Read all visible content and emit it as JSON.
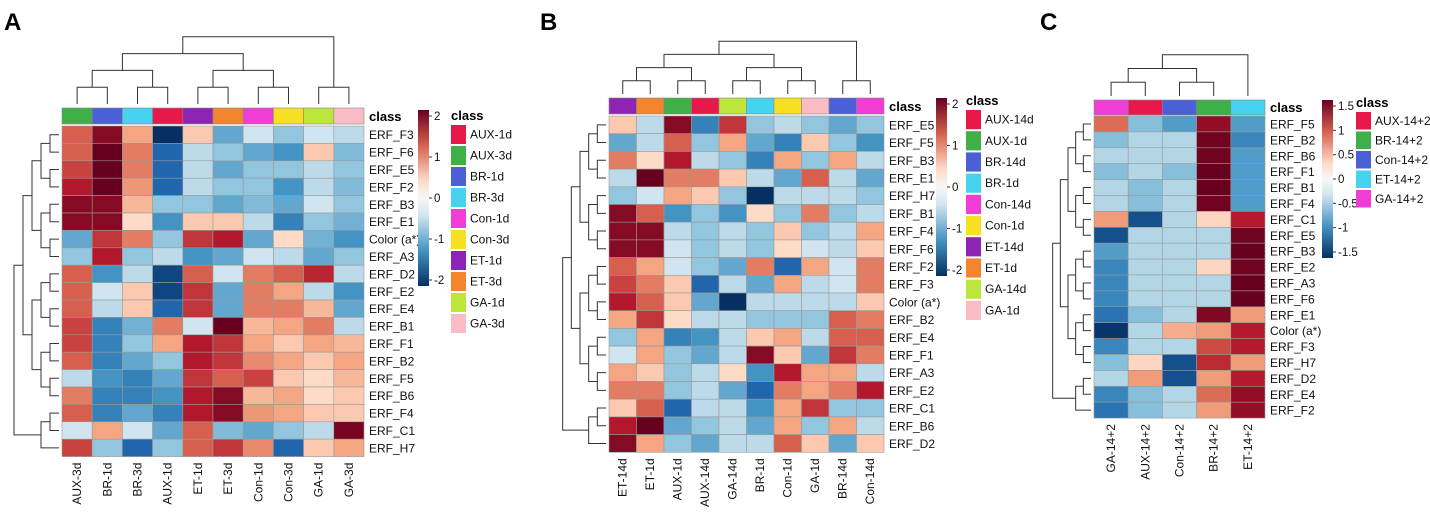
{
  "chart_data": [
    {
      "type": "heatmap",
      "panel_label": "A",
      "class_header": "class",
      "columns": [
        "AUX-3d",
        "BR-1d",
        "BR-3d",
        "AUX-1d",
        "ET-1d",
        "ET-3d",
        "Con-1d",
        "Con-3d",
        "GA-1d",
        "GA-3d"
      ],
      "column_classes": [
        "AUX-3d",
        "BR-1d",
        "BR-3d",
        "AUX-1d",
        "ET-1d",
        "ET-3d",
        "Con-1d",
        "Con-3d",
        "GA-1d",
        "GA-3d"
      ],
      "rows": [
        "ERF_F3",
        "ERF_F6",
        "ERF_E5",
        "ERF_F2",
        "ERF_B3",
        "ERF_E1",
        "Color (a*)",
        "ERF_A3",
        "ERF_D2",
        "ERF_E2",
        "ERF_E4",
        "ERF_B1",
        "ERF_F1",
        "ERF_B2",
        "ERF_F5",
        "ERF_B6",
        "ERF_F4",
        "ERF_C1",
        "ERF_H7"
      ],
      "values": [
        [
          1.0,
          1.8,
          0.5,
          -2.0,
          0.3,
          -0.8,
          -0.2,
          -0.5,
          -0.2,
          -0.3
        ],
        [
          1.0,
          2.0,
          0.8,
          -1.5,
          -0.3,
          -0.5,
          -0.8,
          -1.0,
          0.3,
          -0.6
        ],
        [
          1.2,
          2.0,
          0.8,
          -1.5,
          -0.3,
          -0.8,
          -0.5,
          -0.5,
          -0.3,
          -0.5
        ],
        [
          1.5,
          2.0,
          0.6,
          -1.5,
          -0.3,
          -0.5,
          -0.5,
          -1.0,
          -0.3,
          -0.6
        ],
        [
          1.8,
          1.8,
          0.4,
          -0.5,
          -0.5,
          -0.8,
          -0.6,
          -0.8,
          -0.2,
          -0.5
        ],
        [
          1.8,
          1.8,
          0.2,
          -1.0,
          0.3,
          0.3,
          -0.3,
          -1.2,
          -0.5,
          -0.7
        ],
        [
          -0.8,
          1.3,
          0.8,
          -0.5,
          1.3,
          1.5,
          -0.8,
          0.2,
          -0.7,
          -1.0
        ],
        [
          -0.5,
          1.5,
          -0.5,
          -0.3,
          -1.0,
          -0.8,
          -0.2,
          -0.3,
          -0.8,
          -0.5
        ],
        [
          1.0,
          -1.0,
          -0.3,
          -1.8,
          1.0,
          -0.2,
          0.8,
          1.0,
          1.4,
          -0.3
        ],
        [
          1.0,
          -0.2,
          0.3,
          -1.8,
          1.3,
          -0.8,
          0.8,
          0.5,
          -0.3,
          -1.0
        ],
        [
          1.0,
          -0.3,
          0.3,
          -1.5,
          1.3,
          -0.8,
          0.8,
          0.8,
          0.4,
          -0.8
        ],
        [
          1.2,
          -1.2,
          -0.7,
          0.8,
          -0.2,
          2.0,
          0.4,
          0.5,
          0.8,
          -0.3
        ],
        [
          1.2,
          -1.2,
          -0.5,
          0.5,
          1.5,
          1.3,
          0.5,
          0.3,
          0.5,
          0.4
        ],
        [
          1.0,
          -1.2,
          -0.8,
          -0.5,
          1.5,
          1.3,
          0.7,
          0.5,
          0.3,
          0.5
        ],
        [
          -0.3,
          -1.0,
          -1.2,
          -0.8,
          1.3,
          1.0,
          1.2,
          0.3,
          0.2,
          0.4
        ],
        [
          0.8,
          -1.2,
          -1.2,
          -1.0,
          1.5,
          1.8,
          0.4,
          0.5,
          0.2,
          0.3
        ],
        [
          1.0,
          -1.2,
          -0.8,
          -1.2,
          1.5,
          1.8,
          0.6,
          0.5,
          0.3,
          0.3
        ],
        [
          -0.2,
          0.5,
          -0.2,
          -0.8,
          1.0,
          -0.6,
          -0.8,
          -0.5,
          -0.3,
          1.9
        ],
        [
          1.2,
          -0.5,
          -1.5,
          -0.5,
          1.0,
          1.3,
          0.7,
          -1.5,
          0.3,
          0.5
        ]
      ],
      "colorbar": {
        "ticks": [
          "2",
          "1",
          "0",
          "-1",
          "-2"
        ],
        "range": [
          -2,
          2
        ]
      },
      "legend_title": "class",
      "legend": [
        {
          "label": "AUX-1d",
          "color": "#E8194A"
        },
        {
          "label": "AUX-3d",
          "color": "#3FAF48"
        },
        {
          "label": "BR-1d",
          "color": "#4B5FD6"
        },
        {
          "label": "BR-3d",
          "color": "#45D3F0"
        },
        {
          "label": "Con-1d",
          "color": "#EF3DD6"
        },
        {
          "label": "Con-3d",
          "color": "#F6E021"
        },
        {
          "label": "ET-1d",
          "color": "#8E24B4"
        },
        {
          "label": "ET-3d",
          "color": "#F4852F"
        },
        {
          "label": "GA-1d",
          "color": "#BCE63B"
        },
        {
          "label": "GA-3d",
          "color": "#F9BCC4"
        }
      ]
    },
    {
      "type": "heatmap",
      "panel_label": "B",
      "class_header": "class",
      "columns": [
        "ET-14d",
        "ET-1d",
        "AUX-1d",
        "AUX-14d",
        "GA-14d",
        "BR-1d",
        "Con-1d",
        "GA-1d",
        "BR-14d",
        "Con-14d"
      ],
      "column_classes": [
        "ET-14d",
        "ET-1d",
        "AUX-1d",
        "AUX-14d",
        "GA-14d",
        "BR-1d",
        "Con-1d",
        "GA-1d",
        "BR-14d",
        "Con-14d"
      ],
      "rows": [
        "ERF_E5",
        "ERF_F5",
        "ERF_B3",
        "ERF_E1",
        "ERF_H7",
        "ERF_B1",
        "ERF_F4",
        "ERF_F6",
        "ERF_F2",
        "ERF_F3",
        "Color (a*)",
        "ERF_B2",
        "ERF_E4",
        "ERF_F1",
        "ERF_A3",
        "ERF_E2",
        "ERF_C1",
        "ERF_B6",
        "ERF_D2"
      ],
      "values": [
        [
          0.3,
          -0.3,
          1.8,
          -1.2,
          1.3,
          -0.5,
          -0.3,
          -0.5,
          -0.8,
          -0.5
        ],
        [
          -0.8,
          -0.3,
          1.0,
          -0.5,
          0.5,
          -0.8,
          -1.2,
          0.3,
          -0.5,
          -1.0
        ],
        [
          0.8,
          0.2,
          1.5,
          -0.3,
          -0.5,
          -1.2,
          0.5,
          -0.5,
          0.5,
          -0.3
        ],
        [
          -0.3,
          2.0,
          0.8,
          0.8,
          0.3,
          -0.3,
          -0.8,
          1.0,
          -0.3,
          -0.8
        ],
        [
          -0.5,
          -0.2,
          0.5,
          0.3,
          -0.5,
          -2.0,
          -0.3,
          -0.3,
          -0.3,
          -0.5
        ],
        [
          1.8,
          1.0,
          -1.0,
          -0.5,
          -1.0,
          0.2,
          -0.5,
          0.8,
          -0.5,
          -0.3
        ],
        [
          1.8,
          1.8,
          -0.3,
          -0.5,
          -0.3,
          -0.5,
          0.3,
          -0.5,
          -0.3,
          0.5
        ],
        [
          1.8,
          1.8,
          -0.2,
          -0.5,
          -0.3,
          -0.5,
          0.2,
          -0.2,
          -0.3,
          0.3
        ],
        [
          1.0,
          0.5,
          -0.2,
          -0.5,
          -0.8,
          0.8,
          -1.5,
          0.5,
          -0.2,
          0.8
        ],
        [
          1.2,
          0.8,
          0.3,
          -1.5,
          -0.3,
          -0.8,
          0.5,
          -0.3,
          -0.2,
          0.8
        ],
        [
          1.5,
          1.0,
          0.3,
          -0.8,
          -2.0,
          -0.3,
          -0.3,
          -0.3,
          -0.3,
          0.3
        ],
        [
          0.5,
          1.3,
          0.2,
          -0.3,
          -0.3,
          -0.5,
          -0.5,
          -0.5,
          1.0,
          0.8
        ],
        [
          -0.5,
          0.5,
          -1.2,
          -1.0,
          -0.3,
          0.3,
          0.5,
          -0.3,
          1.0,
          1.0
        ],
        [
          -0.2,
          0.5,
          -0.5,
          -0.8,
          -0.3,
          1.8,
          0.3,
          -0.8,
          1.3,
          0.8
        ],
        [
          0.5,
          0.3,
          -0.5,
          -0.3,
          0.2,
          -1.0,
          1.5,
          0.5,
          0.5,
          -0.3
        ],
        [
          0.8,
          0.8,
          -0.5,
          -0.3,
          -0.8,
          -1.5,
          0.8,
          0.5,
          0.8,
          1.5
        ],
        [
          0.3,
          1.0,
          -1.5,
          -0.3,
          -0.3,
          -1.0,
          0.5,
          1.3,
          -0.5,
          -0.5
        ],
        [
          1.5,
          2.0,
          -0.8,
          -0.5,
          -0.3,
          -0.8,
          0.5,
          -0.5,
          0.5,
          -0.3
        ],
        [
          1.8,
          0.5,
          -0.5,
          -0.8,
          -0.3,
          -0.3,
          1.0,
          0.3,
          -0.8,
          0.3
        ]
      ],
      "colorbar": {
        "ticks": [
          "2",
          "1",
          "0",
          "-1",
          "-2"
        ],
        "range": [
          -2,
          2
        ]
      },
      "legend_title": "class",
      "legend": [
        {
          "label": "AUX-14d",
          "color": "#E8194A"
        },
        {
          "label": "AUX-1d",
          "color": "#3FAF48"
        },
        {
          "label": "BR-14d",
          "color": "#4B5FD6"
        },
        {
          "label": "BR-1d",
          "color": "#45D3F0"
        },
        {
          "label": "Con-14d",
          "color": "#EF3DD6"
        },
        {
          "label": "Con-1d",
          "color": "#F6E021"
        },
        {
          "label": "ET-14d",
          "color": "#8E24B4"
        },
        {
          "label": "ET-1d",
          "color": "#F4852F"
        },
        {
          "label": "GA-14d",
          "color": "#BCE63B"
        },
        {
          "label": "GA-1d",
          "color": "#F9BCC4"
        }
      ]
    },
    {
      "type": "heatmap",
      "panel_label": "C",
      "class_header": "class",
      "columns": [
        "GA-14+2",
        "AUX-14+2",
        "Con-14+2",
        "BR-14+2",
        "ET-14+2"
      ],
      "column_classes": [
        "GA-14+2",
        "AUX-14+2",
        "Con-14+2",
        "BR-14+2",
        "ET-14+2"
      ],
      "rows": [
        "ERF_F5",
        "ERF_B2",
        "ERF_B6",
        "ERF_F1",
        "ERF_B1",
        "ERF_F4",
        "ERF_C1",
        "ERF_E5",
        "ERF_B3",
        "ERF_E2",
        "ERF_A3",
        "ERF_F6",
        "ERF_E1",
        "Color (a*)",
        "ERF_F3",
        "ERF_H7",
        "ERF_D2",
        "ERF_E4",
        "ERF_F2"
      ],
      "values": [
        [
          0.8,
          -0.5,
          -0.8,
          1.5,
          -0.8
        ],
        [
          -0.5,
          -0.3,
          -0.3,
          1.7,
          -1.0
        ],
        [
          -0.3,
          -0.3,
          -0.3,
          1.7,
          -0.8
        ],
        [
          -0.5,
          -0.3,
          -0.5,
          1.8,
          -0.8
        ],
        [
          -0.3,
          -0.5,
          -0.3,
          1.8,
          -0.8
        ],
        [
          -0.3,
          -0.5,
          -0.3,
          1.7,
          -0.8
        ],
        [
          0.5,
          -1.5,
          -0.3,
          0.2,
          1.3
        ],
        [
          -1.5,
          -0.3,
          -0.3,
          -0.3,
          1.7
        ],
        [
          -0.8,
          -0.3,
          -0.3,
          -0.3,
          1.8
        ],
        [
          -1.0,
          -0.3,
          -0.3,
          0.2,
          1.7
        ],
        [
          -1.0,
          -0.3,
          -0.3,
          -0.3,
          1.8
        ],
        [
          -1.0,
          -0.3,
          -0.3,
          -0.3,
          1.8
        ],
        [
          -1.2,
          -0.5,
          -0.3,
          1.6,
          0.5
        ],
        [
          -1.7,
          -0.3,
          0.4,
          0.5,
          1.3
        ],
        [
          -1.0,
          -0.3,
          -0.3,
          1.0,
          1.3
        ],
        [
          -0.5,
          0.2,
          -1.5,
          1.2,
          0.5
        ],
        [
          -0.3,
          0.5,
          -1.5,
          0.5,
          1.3
        ],
        [
          -1.0,
          -0.5,
          -0.3,
          0.8,
          1.5
        ],
        [
          -1.2,
          -0.5,
          -0.3,
          0.5,
          1.5
        ]
      ],
      "colorbar": {
        "ticks": [
          "1.5",
          "1",
          "0.5",
          "0",
          "-0.5",
          "-1",
          "-1.5"
        ],
        "range": [
          -1.75,
          1.75
        ]
      },
      "legend_title": "class",
      "legend": [
        {
          "label": "AUX-14+2",
          "color": "#E8194A"
        },
        {
          "label": "BR-14+2",
          "color": "#3FAF48"
        },
        {
          "label": "Con-14+2",
          "color": "#4B5FD6"
        },
        {
          "label": "ET-14+2",
          "color": "#45D3F0"
        },
        {
          "label": "GA-14+2",
          "color": "#EF3DD6"
        }
      ]
    }
  ]
}
